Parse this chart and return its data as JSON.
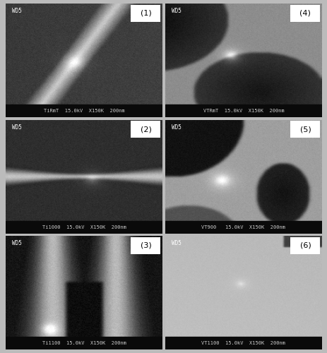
{
  "figure_size": [
    4.64,
    5.0
  ],
  "dpi": 100,
  "panel_labels": [
    "(1)",
    "(2)",
    "(3)",
    "(4)",
    "(5)",
    "(6)"
  ],
  "scale_bar_texts": [
    "TiRmT  15.0kV  X150K  200nm",
    "Ti1000  15.0kV  X150K  200nm",
    "Ti1100  15.0kV  X150K  200nm",
    "VTRmT  15.0kV  X150K  200nm",
    "VT900   15.0kV  X150K  200nm",
    "VT1100  15.0kV  X150K  200nm"
  ],
  "wd_label": "WD5",
  "label_fontsize": 8,
  "bar_fontsize": 5.0,
  "wd_fontsize": 5.5,
  "bar_bg": "#0a0a0a",
  "bar_text_color": "#cccccc",
  "label_text_color": "#000000",
  "fig_bg": "#bbbbbb",
  "gap_color": "#bbbbbb"
}
